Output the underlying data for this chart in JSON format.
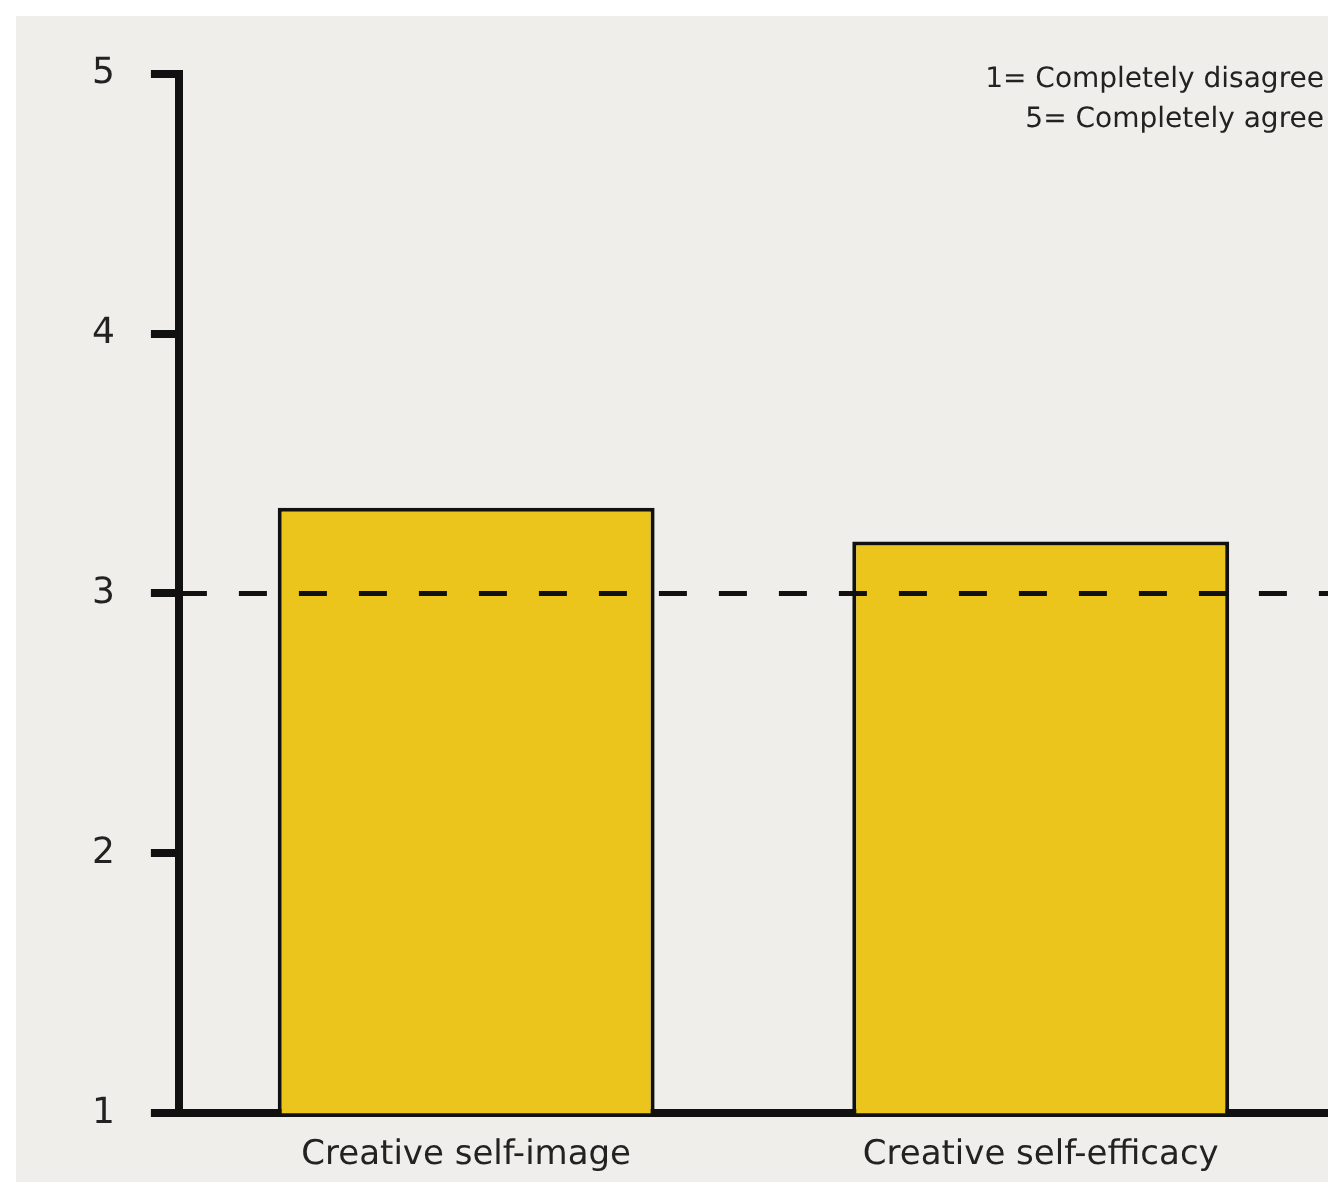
{
  "chart_data": {
    "type": "bar",
    "categories": [
      "Creative self-image",
      "Creative self-efficacy"
    ],
    "values": [
      3.33,
      3.2
    ],
    "color": "#ecc51c",
    "ylim": [
      1,
      5
    ],
    "yticks": [
      1,
      2,
      3,
      4,
      5
    ],
    "grid": false,
    "ref_lines": [
      {
        "axis": "y",
        "value": 3,
        "line_style": "dashed",
        "color": "#111111"
      }
    ],
    "annotations": [
      "1= Completely disagree",
      "5= Completely agree"
    ]
  }
}
